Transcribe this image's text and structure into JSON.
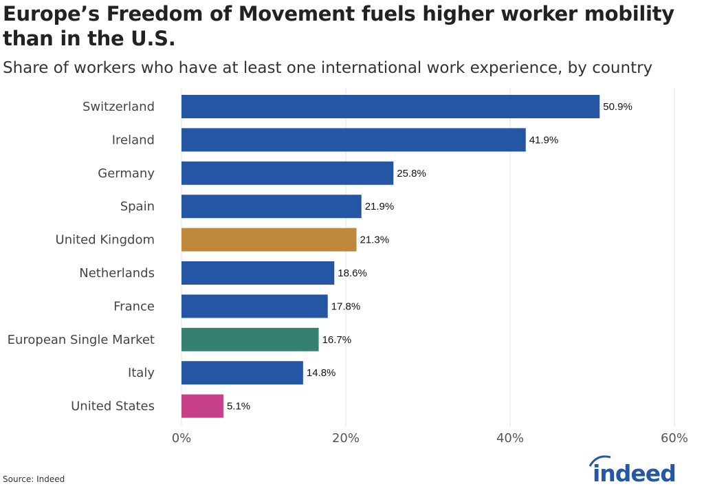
{
  "title": "Europe’s Freedom of Movement fuels higher worker mobility than in the U.S.",
  "subtitle": "Share of workers who have at least one international work experience, by country",
  "source": "Source: Indeed",
  "logo": {
    "text": "indeed",
    "color": "#2557a7"
  },
  "chart_data": {
    "type": "bar",
    "orientation": "horizontal",
    "categories": [
      "Switzerland",
      "Ireland",
      "Germany",
      "Spain",
      "United Kingdom",
      "Netherlands",
      "France",
      "European Single Market",
      "Italy",
      "United States"
    ],
    "values": [
      50.9,
      41.9,
      25.8,
      21.9,
      21.3,
      18.6,
      17.8,
      16.7,
      14.8,
      5.1
    ],
    "data_labels": [
      "50.9%",
      "41.9%",
      "25.8%",
      "21.9%",
      "21.3%",
      "18.6%",
      "17.8%",
      "16.7%",
      "14.8%",
      "5.1%"
    ],
    "colors": [
      "#2456a4",
      "#2456a4",
      "#2456a4",
      "#2456a4",
      "#c0883a",
      "#2456a4",
      "#2456a4",
      "#358070",
      "#2456a4",
      "#c7408a"
    ],
    "xlim": [
      0,
      60
    ],
    "x_ticks": [
      0,
      20,
      40,
      60
    ],
    "x_tick_labels": [
      "0%",
      "20%",
      "40%",
      "60%"
    ],
    "grid": "vertical",
    "title": "Europe’s Freedom of Movement fuels higher worker mobility than in the U.S.",
    "subtitle": "Share of workers who have at least one international work experience, by country"
  }
}
